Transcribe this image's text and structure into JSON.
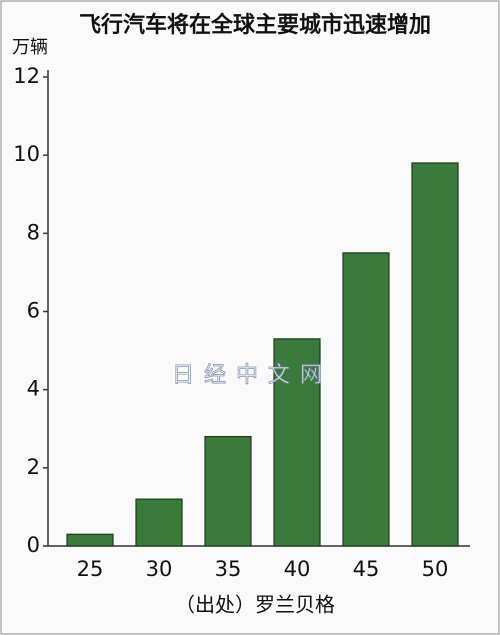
{
  "chart_data": {
    "type": "bar",
    "title": "飞行汽车将在全球主要城市迅速增加",
    "y_label": "万辆",
    "categories": [
      "25",
      "30",
      "35",
      "40",
      "45",
      "50"
    ],
    "values": [
      0.3,
      1.2,
      2.8,
      5.3,
      7.5,
      9.8
    ],
    "color": "#3a7a3a",
    "ylim": [
      0,
      12
    ],
    "yticks": [
      0,
      2,
      4,
      6,
      8,
      10,
      12
    ],
    "source": "（出处）罗兰贝格",
    "watermark": "日经中文网"
  }
}
